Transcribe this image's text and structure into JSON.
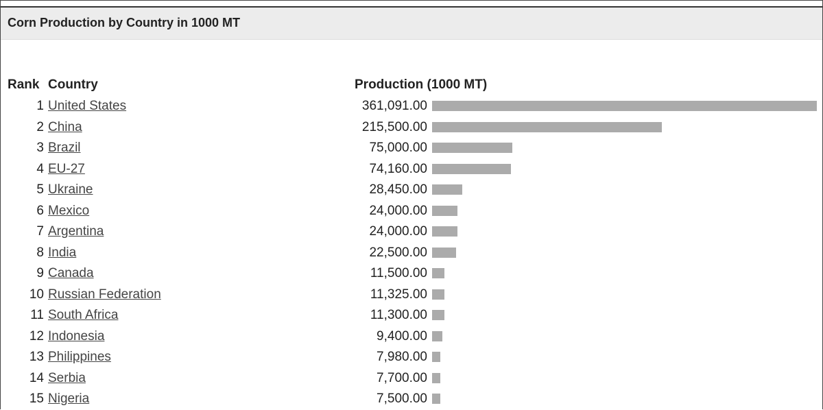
{
  "title": "Corn Production by Country in 1000 MT",
  "table": {
    "columns": [
      "Rank",
      "Country",
      "Production (1000 MT)"
    ],
    "ranks": [
      1,
      2,
      3,
      4,
      5,
      6,
      7,
      8,
      9,
      10,
      11,
      12,
      13,
      14,
      15
    ],
    "countries": [
      "United States",
      "China",
      "Brazil",
      "EU-27",
      "Ukraine",
      "Mexico",
      "Argentina",
      "India",
      "Canada",
      "Russian Federation",
      "South Africa",
      "Indonesia",
      "Philippines",
      "Serbia",
      "Nigeria"
    ],
    "values": [
      361091,
      215500,
      75000,
      74160,
      28450,
      24000,
      24000,
      22500,
      11500,
      11325,
      11300,
      9400,
      7980,
      7700,
      7500
    ],
    "value_labels": [
      "361,091.00",
      "215,500.00",
      "75,000.00",
      "74,160.00",
      "28,450.00",
      "24,000.00",
      "24,000.00",
      "22,500.00",
      "11,500.00",
      "11,325.00",
      "11,300.00",
      "9,400.00",
      "7,980.00",
      "7,700.00",
      "7,500.00"
    ]
  }
}
